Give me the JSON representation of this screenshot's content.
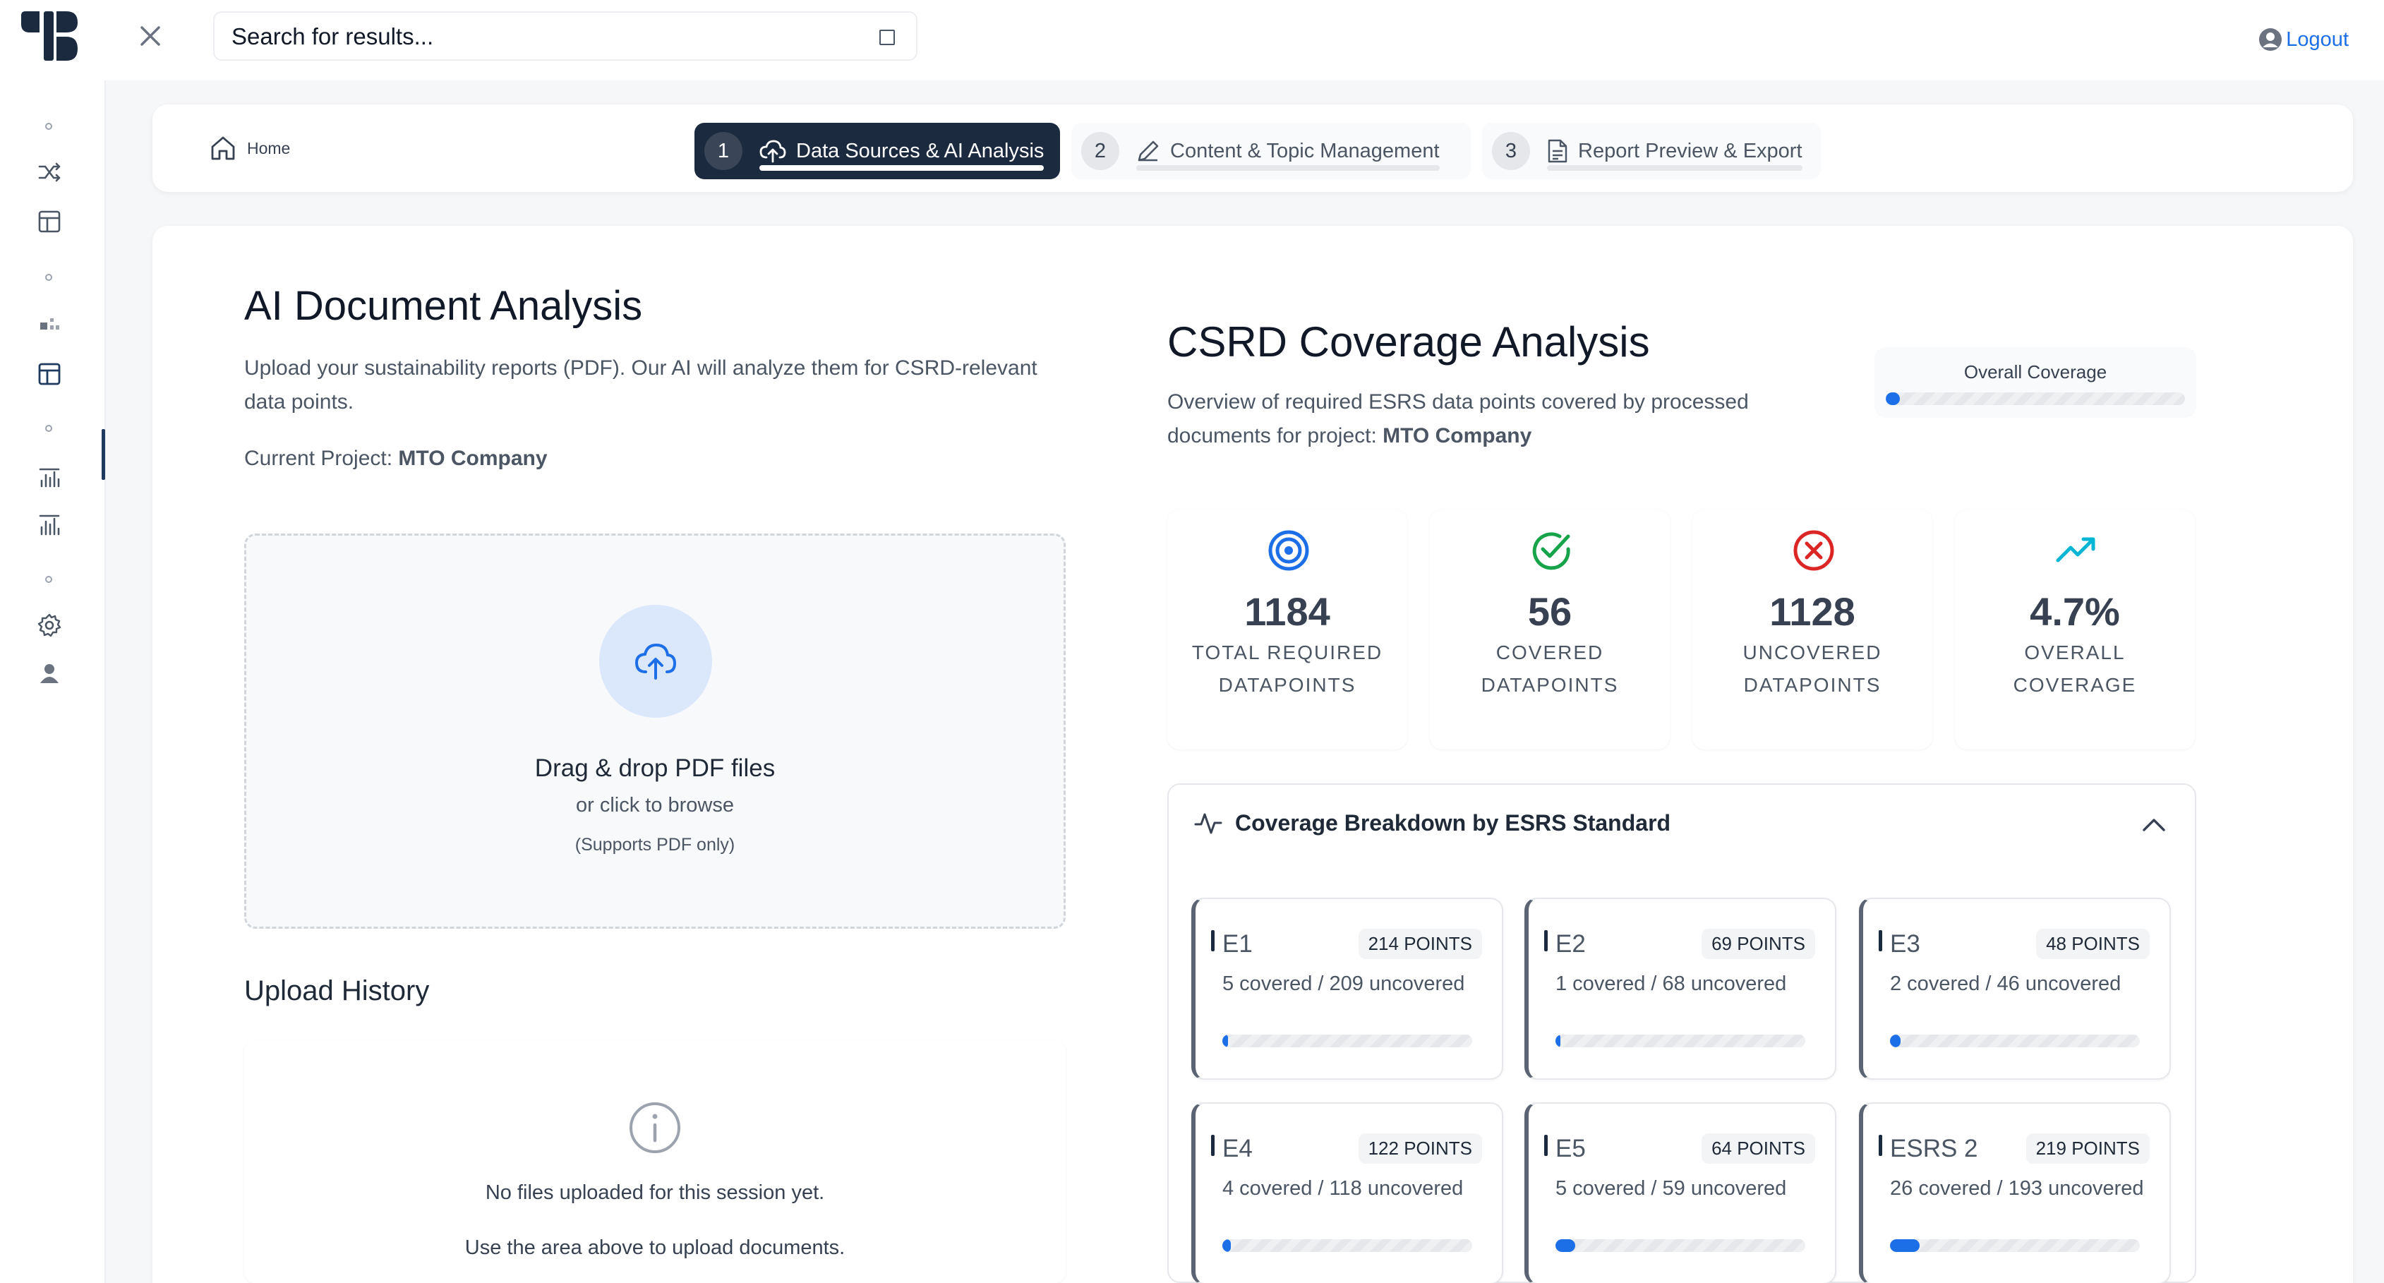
{
  "header": {
    "search_placeholder": "Search for results...",
    "logout_label": "Logout"
  },
  "stepper": {
    "home_label": "Home",
    "steps": [
      {
        "num": "1",
        "label": "Data Sources & AI Analysis"
      },
      {
        "num": "2",
        "label": "Content & Topic Management"
      },
      {
        "num": "3",
        "label": "Report Preview & Export"
      }
    ]
  },
  "left": {
    "title": "AI Document Analysis",
    "desc_line1": "Upload your sustainability reports (PDF). Our AI will analyze them for CSRD-relevant",
    "desc_line2": "data points.",
    "project_label": "Current Project:",
    "project_name": "MTO Company",
    "dropzone": {
      "title": "Drag & drop PDF files",
      "sub": "or click to browse",
      "note": "(Supports PDF only)"
    },
    "history": {
      "title": "Upload History",
      "empty": "No files uploaded for this session yet.",
      "hint": "Use the area above to upload documents."
    }
  },
  "right": {
    "title": "CSRD Coverage Analysis",
    "desc_line1": "Overview of required ESRS data points covered by processed",
    "desc_line2_prefix": "documents for project:",
    "project_name": "MTO Company",
    "overall_label": "Overall Coverage",
    "overall_pct": 4.7,
    "stats": [
      {
        "value": "1184",
        "line1": "Total Required",
        "line2": "Datapoints",
        "icon": "target-icon",
        "color": "#1d6fe8"
      },
      {
        "value": "56",
        "line1": "Covered",
        "line2": "Datapoints",
        "icon": "check-circle-icon",
        "color": "#16a34a"
      },
      {
        "value": "1128",
        "line1": "Uncovered",
        "line2": "Datapoints",
        "icon": "x-circle-icon",
        "color": "#dc2626"
      },
      {
        "value": "4.7%",
        "line1": "Overall",
        "line2": "Coverage",
        "icon": "trending-up-icon",
        "color": "#06b6d4"
      }
    ],
    "breakdown": {
      "title": "Coverage Breakdown by ESRS Standard",
      "standards": [
        {
          "code": "E1",
          "points": "214 POINTS",
          "coverage": "5 covered / 209 uncovered",
          "pct": 2.3
        },
        {
          "code": "E2",
          "points": "69 POINTS",
          "coverage": "1 covered / 68 uncovered",
          "pct": 1.4
        },
        {
          "code": "E3",
          "points": "48 POINTS",
          "coverage": "2 covered / 46 uncovered",
          "pct": 4.2
        },
        {
          "code": "E4",
          "points": "122 POINTS",
          "coverage": "4 covered / 118 uncovered",
          "pct": 3.3
        },
        {
          "code": "E5",
          "points": "64 POINTS",
          "coverage": "5 covered / 59 uncovered",
          "pct": 7.8
        },
        {
          "code": "ESRS 2",
          "points": "219 POINTS",
          "coverage": "26 covered / 193 uncovered",
          "pct": 11.9
        }
      ]
    }
  }
}
